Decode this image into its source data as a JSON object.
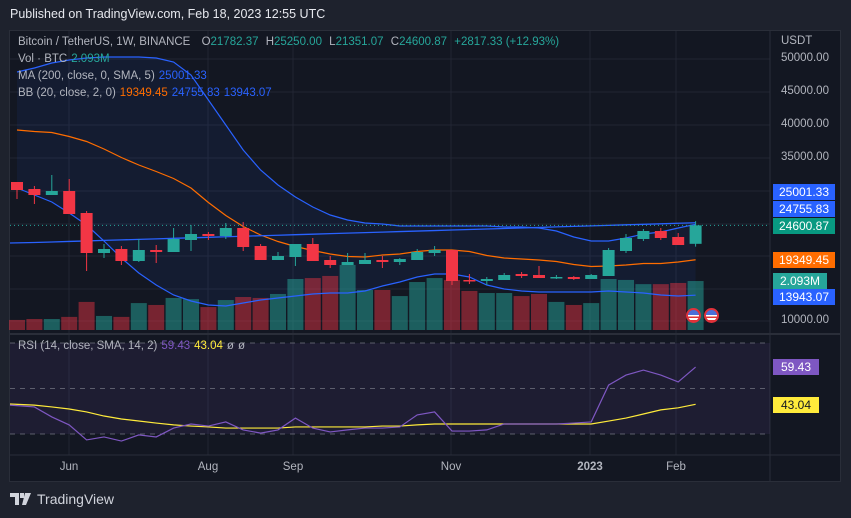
{
  "header": {
    "published": "Published on TradingView.com, Feb 18, 2023 12:55 UTC"
  },
  "legend": {
    "symbol": "Bitcoin / TetherUS, 1W, BINANCE",
    "open_label": "O",
    "open": "21782.37",
    "high_label": "H",
    "high": "25250.00",
    "low_label": "L",
    "low": "21351.07",
    "close_label": "C",
    "close": "24600.87",
    "change": "+2817.33 (+12.93%)",
    "vol_label": "Vol · BTC",
    "vol_value": "2.093M",
    "ma_label": "MA (200, close, 0, SMA, 5)",
    "ma_value": "25001.33",
    "bb_label": "BB (20, close, 2, 0)",
    "bb_basis": "19349.45",
    "bb_upper": "24755.83",
    "bb_lower": "13943.07",
    "rsi_label": "RSI (14, close, SMA, 14, 2)",
    "rsi_value": "59.43",
    "rsi_ma_value": "43.04",
    "rsi_extra1": "ø",
    "rsi_extra2": "ø"
  },
  "price_axis": {
    "currency": "USDT",
    "ticks": [
      "50000.00",
      "45000.00",
      "40000.00",
      "35000.00",
      "10000.00"
    ],
    "tags": {
      "ma": "25001.33",
      "bb_upper": "24755.83",
      "last": "24600.87",
      "bb_basis": "19349.45",
      "volume": "2.093M",
      "bb_lower": "13943.07"
    },
    "rsi_tags": {
      "rsi": "59.43",
      "rsi_ma": "43.04"
    }
  },
  "time_axis": [
    "Jun",
    "Aug",
    "Sep",
    "Nov",
    "2023",
    "Feb"
  ],
  "footer": {
    "brand": "TradingView"
  },
  "colors": {
    "up": "#26a69a",
    "down": "#f23645",
    "ma": "#2962ff",
    "bb_band": "#2962ff",
    "bb_basis": "#ff6d00",
    "rsi": "#7e57c2",
    "rsi_ma": "#ffeb3b"
  },
  "chart_data": {
    "type": "candlestick",
    "title": "Bitcoin / TetherUS, 1W, BINANCE",
    "ylim": [
      10000,
      50000
    ],
    "ohlc": [
      [
        31222,
        31222,
        28626,
        30000
      ],
      [
        30153,
        30611,
        27863,
        29237
      ],
      [
        29237,
        32290,
        29237,
        29847
      ],
      [
        29847,
        31680,
        26336,
        26336
      ],
      [
        26489,
        26794,
        17634,
        20382
      ],
      [
        20382,
        21755,
        19618,
        20992
      ],
      [
        20992,
        21450,
        18550,
        19160
      ],
      [
        19160,
        22519,
        19008,
        20840
      ],
      [
        20840,
        21603,
        18855,
        20534
      ],
      [
        20534,
        24199,
        20534,
        22519
      ],
      [
        22366,
        24656,
        20687,
        23282
      ],
      [
        23282,
        23588,
        22366,
        22977
      ],
      [
        22977,
        24962,
        22519,
        24199
      ],
      [
        24199,
        25115,
        20687,
        21298
      ],
      [
        21450,
        21755,
        19313,
        19313
      ],
      [
        19313,
        20534,
        19313,
        19924
      ],
      [
        19771,
        21755,
        18397,
        21755
      ],
      [
        21755,
        22672,
        19160,
        19160
      ],
      [
        19313,
        19924,
        18092,
        18550
      ],
      [
        18550,
        20382,
        18550,
        19008
      ],
      [
        18702,
        20382,
        18702,
        19313
      ],
      [
        19313,
        19924,
        18092,
        19008
      ],
      [
        19008,
        19618,
        18550,
        19466
      ],
      [
        19313,
        20992,
        19313,
        20534
      ],
      [
        20382,
        21450,
        19924,
        20840
      ],
      [
        20840,
        20840,
        15496,
        16107
      ],
      [
        16260,
        17176,
        15649,
        16107
      ],
      [
        16107,
        16718,
        15496,
        16412
      ],
      [
        16260,
        17328,
        16260,
        17023
      ],
      [
        17176,
        17481,
        16565,
        16870
      ],
      [
        17023,
        18397,
        16565,
        16565
      ],
      [
        16565,
        17023,
        16412,
        16718
      ],
      [
        16718,
        16870,
        16260,
        16412
      ],
      [
        16412,
        17176,
        16412,
        17023
      ],
      [
        16870,
        21145,
        16870,
        20840
      ],
      [
        20687,
        23282,
        20382,
        22672
      ],
      [
        22519,
        24046,
        22214,
        23740
      ],
      [
        23740,
        24199,
        22366,
        22672
      ],
      [
        22824,
        23435,
        21603,
        21603
      ],
      [
        21782.37,
        25250,
        21351.07,
        24600.87
      ]
    ],
    "volume_m": [
      0.43,
      0.47,
      0.47,
      0.56,
      1.2,
      0.6,
      0.56,
      1.15,
      1.07,
      1.37,
      1.32,
      0.98,
      1.28,
      1.41,
      1.37,
      1.54,
      2.18,
      2.22,
      2.31,
      2.78,
      1.71,
      1.71,
      1.45,
      2.05,
      2.22,
      2.14,
      1.67,
      1.58,
      1.58,
      1.45,
      1.54,
      1.2,
      1.07,
      1.15,
      2.18,
      2.14,
      1.96,
      1.96,
      2.01,
      2.093
    ],
    "bb_upper": [
      48015,
      48626,
      49389,
      49847,
      50153,
      50305,
      50305,
      50305,
      50153,
      49542,
      47557,
      43740,
      39924,
      36107,
      33053,
      30763,
      28931,
      27405,
      26183,
      25420,
      24962,
      24809,
      24504,
      24504,
      24504,
      24504,
      24504,
      24504,
      24351,
      24351,
      24199,
      23740,
      22824,
      22214,
      22214,
      22672,
      23282,
      23588,
      24199,
      24755.83
    ],
    "bb_lower": [
      30305,
      29237,
      28168,
      26489,
      24657,
      22214,
      19618,
      17328,
      15496,
      13969,
      13053,
      12443,
      12290,
      12748,
      13206,
      13511,
      13817,
      14122,
      14275,
      14275,
      14580,
      15344,
      15954,
      16718,
      17176,
      17176,
      16718,
      15496,
      14885,
      14580,
      14427,
      14427,
      14427,
      14427,
      14580,
      14427,
      14275,
      13969,
      13817,
      13943.07
    ],
    "ma200": [
      21908,
      21987,
      22066,
      22146,
      22225,
      22304,
      22383,
      22463,
      22542,
      22621,
      22700,
      22780,
      22859,
      22938,
      23017,
      23097,
      23176,
      23255,
      23334,
      23414,
      23493,
      23572,
      23651,
      23731,
      23810,
      23889,
      23968,
      24048,
      24127,
      24206,
      24285,
      24365,
      24444,
      24523,
      24602,
      24682,
      24761,
      24840,
      24919,
      25001.33
    ],
    "rsi": [
      42.7,
      41.9,
      37.5,
      34.0,
      27.4,
      28.7,
      26.9,
      29.6,
      28.7,
      32.6,
      34.4,
      33.5,
      35.3,
      31.8,
      30.4,
      31.8,
      37.0,
      32.6,
      30.9,
      31.8,
      32.6,
      32.6,
      33.1,
      38.4,
      39.7,
      31.3,
      31.3,
      31.8,
      34.4,
      34.4,
      34.4,
      34.4,
      34.8,
      35.3,
      51.5,
      55.9,
      58.1,
      55.9,
      52.9,
      59.43
    ],
    "rsi_ma": [
      43.2,
      42.7,
      41.9,
      41.0,
      39.7,
      37.9,
      36.6,
      35.7,
      34.8,
      34.0,
      33.5,
      33.1,
      32.6,
      32.6,
      32.6,
      32.6,
      33.1,
      33.1,
      33.1,
      33.1,
      33.1,
      33.5,
      33.5,
      34.0,
      34.4,
      34.4,
      34.4,
      34.4,
      34.4,
      34.4,
      34.4,
      34.4,
      34.4,
      34.4,
      35.7,
      37.0,
      38.8,
      40.6,
      41.5,
      43.04
    ],
    "rsi_levels": [
      70,
      50,
      30
    ]
  }
}
